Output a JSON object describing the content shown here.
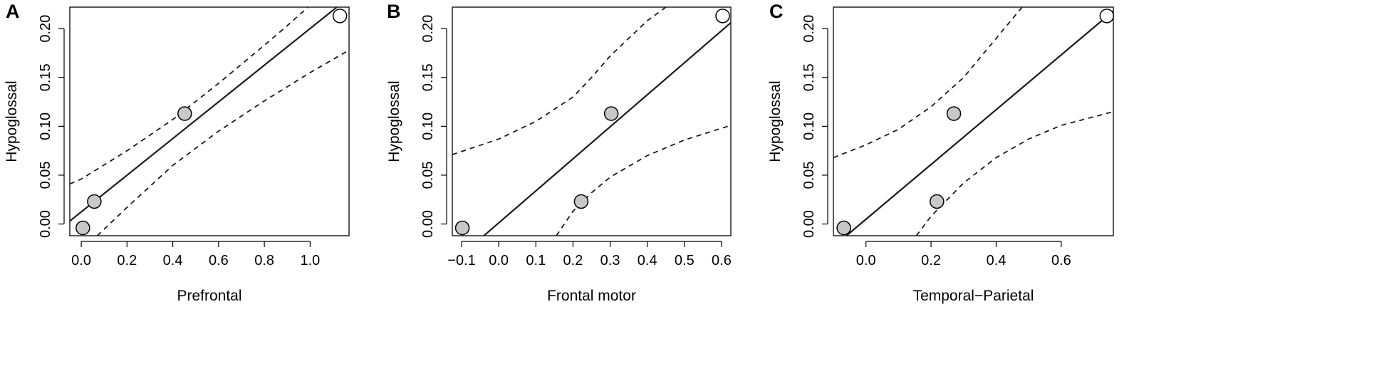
{
  "figure": {
    "colors": {
      "axis": "#000000",
      "point_fill": "#c8c8c8",
      "outlier_fill": "#ffffff",
      "fit_line": "#1a1a1a"
    }
  },
  "chart_data": [
    {
      "panel_label": "A",
      "type": "scatter",
      "xlabel": "Prefrontal",
      "ylabel": "Hypoglossal",
      "xlim": [
        -0.05,
        1.17
      ],
      "ylim": [
        -0.012,
        0.222
      ],
      "xticks": [
        "0.0",
        "0.2",
        "0.4",
        "0.6",
        "0.8",
        "1.0"
      ],
      "xtick_values": [
        0.0,
        0.2,
        0.4,
        0.6,
        0.8,
        1.0
      ],
      "yticks": [
        "0.00",
        "0.05",
        "0.10",
        "0.15",
        "0.20"
      ],
      "ytick_values": [
        0.0,
        0.05,
        0.1,
        0.15,
        0.2
      ],
      "points": [
        {
          "x": 0.007,
          "y": -0.004,
          "open": false
        },
        {
          "x": 0.057,
          "y": 0.023,
          "open": false
        },
        {
          "x": 0.452,
          "y": 0.113,
          "open": false
        },
        {
          "x": 1.13,
          "y": 0.213,
          "open": true
        }
      ],
      "fit_line": [
        [
          -0.05,
          0.003
        ],
        [
          1.17,
          0.232
        ]
      ],
      "ci_upper": [
        [
          -0.05,
          0.041
        ],
        [
          0.0,
          0.046
        ],
        [
          0.2,
          0.075
        ],
        [
          0.4,
          0.107
        ],
        [
          0.6,
          0.144
        ],
        [
          0.8,
          0.183
        ],
        [
          0.9,
          0.203
        ],
        [
          1.0,
          0.224
        ]
      ],
      "ci_lower": [
        [
          0.07,
          -0.012
        ],
        [
          0.2,
          0.017
        ],
        [
          0.4,
          0.06
        ],
        [
          0.6,
          0.095
        ],
        [
          0.8,
          0.126
        ],
        [
          1.0,
          0.155
        ],
        [
          1.17,
          0.178
        ]
      ]
    },
    {
      "panel_label": "B",
      "type": "scatter",
      "xlabel": "Frontal motor",
      "ylabel": "Hypoglossal",
      "xlim": [
        -0.125,
        0.625
      ],
      "ylim": [
        -0.012,
        0.222
      ],
      "xticks": [
        "−0.1",
        "0.0",
        "0.1",
        "0.2",
        "0.3",
        "0.4",
        "0.5",
        "0.6"
      ],
      "xtick_values": [
        -0.1,
        0.0,
        0.1,
        0.2,
        0.3,
        0.4,
        0.5,
        0.6
      ],
      "yticks": [
        "0.00",
        "0.05",
        "0.10",
        "0.15",
        "0.20"
      ],
      "ytick_values": [
        0.0,
        0.05,
        0.1,
        0.15,
        0.2
      ],
      "points": [
        {
          "x": -0.098,
          "y": -0.004,
          "open": false
        },
        {
          "x": 0.222,
          "y": 0.023,
          "open": false
        },
        {
          "x": 0.303,
          "y": 0.113,
          "open": false
        },
        {
          "x": 0.603,
          "y": 0.213,
          "open": true
        }
      ],
      "fit_line": [
        [
          -0.04,
          -0.012
        ],
        [
          0.625,
          0.206
        ]
      ],
      "ci_upper": [
        [
          -0.125,
          0.071
        ],
        [
          0.0,
          0.087
        ],
        [
          0.1,
          0.105
        ],
        [
          0.2,
          0.13
        ],
        [
          0.25,
          0.15
        ],
        [
          0.3,
          0.172
        ],
        [
          0.35,
          0.19
        ],
        [
          0.4,
          0.208
        ],
        [
          0.45,
          0.222
        ]
      ],
      "ci_lower": [
        [
          0.155,
          -0.012
        ],
        [
          0.2,
          0.013
        ],
        [
          0.25,
          0.032
        ],
        [
          0.3,
          0.048
        ],
        [
          0.4,
          0.07
        ],
        [
          0.5,
          0.086
        ],
        [
          0.625,
          0.101
        ]
      ]
    },
    {
      "panel_label": "C",
      "type": "scatter",
      "xlabel": "Temporal−Parietal",
      "ylabel": "Hypoglossal",
      "xlim": [
        -0.1,
        0.76
      ],
      "ylim": [
        -0.012,
        0.222
      ],
      "xticks": [
        "0.0",
        "0.2",
        "0.4",
        "0.6"
      ],
      "xtick_values": [
        0.0,
        0.2,
        0.4,
        0.6
      ],
      "yticks": [
        "0.00",
        "0.05",
        "0.10",
        "0.15",
        "0.20"
      ],
      "ytick_values": [
        0.0,
        0.05,
        0.1,
        0.15,
        0.2
      ],
      "points": [
        {
          "x": -0.068,
          "y": -0.004,
          "open": false
        },
        {
          "x": 0.218,
          "y": 0.023,
          "open": false
        },
        {
          "x": 0.27,
          "y": 0.113,
          "open": false
        },
        {
          "x": 0.74,
          "y": 0.213,
          "open": true
        }
      ],
      "fit_line": [
        [
          -0.06,
          -0.012
        ],
        [
          0.76,
          0.218
        ]
      ],
      "ci_upper": [
        [
          -0.1,
          0.068
        ],
        [
          0.0,
          0.081
        ],
        [
          0.1,
          0.097
        ],
        [
          0.2,
          0.12
        ],
        [
          0.3,
          0.15
        ],
        [
          0.35,
          0.17
        ],
        [
          0.4,
          0.19
        ],
        [
          0.45,
          0.21
        ],
        [
          0.48,
          0.222
        ]
      ],
      "ci_lower": [
        [
          0.155,
          -0.012
        ],
        [
          0.2,
          0.008
        ],
        [
          0.3,
          0.042
        ],
        [
          0.4,
          0.068
        ],
        [
          0.5,
          0.087
        ],
        [
          0.6,
          0.101
        ],
        [
          0.76,
          0.115
        ]
      ]
    }
  ]
}
